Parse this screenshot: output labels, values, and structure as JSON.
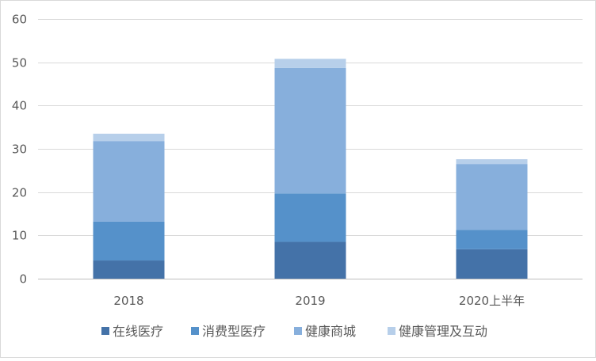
{
  "chart_data": {
    "type": "bar",
    "stacked": true,
    "categories": [
      "2018",
      "2019",
      "2020上半年"
    ],
    "series": [
      {
        "name": "在线医疗",
        "color": "#4472a8",
        "values": [
          4.2,
          8.5,
          6.8
        ]
      },
      {
        "name": "消费型医疗",
        "color": "#5591ca",
        "values": [
          9.0,
          11.2,
          4.5
        ]
      },
      {
        "name": "健康商城",
        "color": "#87afdc",
        "values": [
          18.6,
          29.0,
          15.2
        ]
      },
      {
        "name": "健康管理及互动",
        "color": "#b7cfea",
        "values": [
          1.7,
          2.1,
          1.1
        ]
      }
    ],
    "yticks": [
      0,
      10,
      20,
      30,
      40,
      50,
      60
    ],
    "ylim": [
      0,
      60
    ],
    "grid": true,
    "legend": "bottom"
  }
}
